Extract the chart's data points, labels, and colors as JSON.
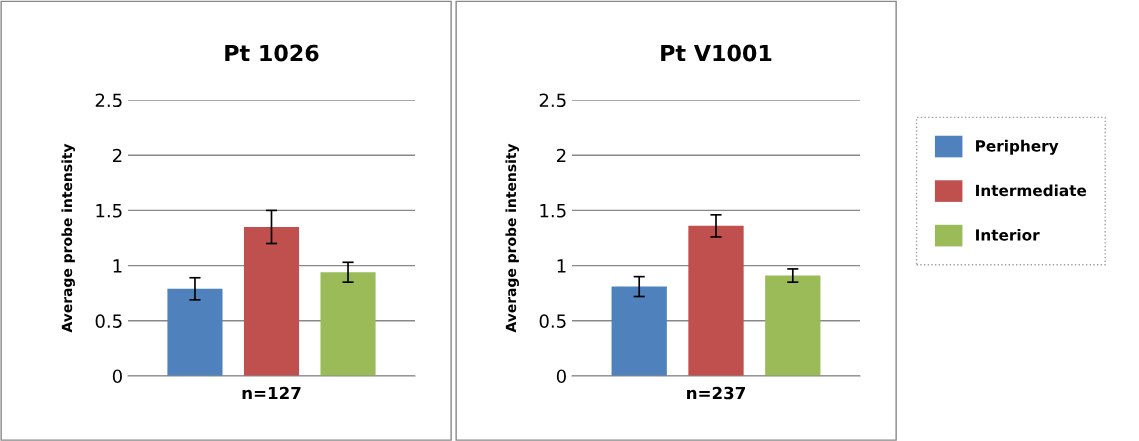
{
  "chart_data": [
    {
      "type": "bar",
      "title": "Pt 1026",
      "xlabel": "n=127",
      "ylabel": "Average probe intensity",
      "categories": [
        null
      ],
      "ylim": [
        0,
        2.5
      ],
      "yticks": [
        0,
        0.5,
        1,
        1.5,
        2,
        2.5
      ],
      "grid": "y",
      "series": [
        {
          "color": "#4f81bd",
          "values": [
            0.79
          ],
          "errors": [
            0.1
          ]
        },
        {
          "color": "#c0504d",
          "values": [
            1.35
          ],
          "errors": [
            0.15
          ]
        },
        {
          "color": "#9bbb59",
          "values": [
            0.94
          ],
          "errors": [
            0.09
          ]
        }
      ]
    },
    {
      "type": "bar",
      "title": "Pt V1001",
      "xlabel": "n=237",
      "ylabel": "Average probe intensity",
      "categories": [
        null
      ],
      "ylim": [
        0,
        2.5
      ],
      "yticks": [
        0,
        0.5,
        1,
        1.5,
        2,
        2.5
      ],
      "grid": "y",
      "legend": "right",
      "series": [
        {
          "name": "Periphery",
          "color": "#4f81bd",
          "values": [
            0.81
          ],
          "errors": [
            0.09
          ]
        },
        {
          "name": "Intermediate",
          "color": "#c0504d",
          "values": [
            1.36
          ],
          "errors": [
            0.1
          ]
        },
        {
          "name": "Interior",
          "color": "#9bbb59",
          "values": [
            0.91
          ],
          "errors": [
            0.06
          ]
        }
      ]
    }
  ]
}
